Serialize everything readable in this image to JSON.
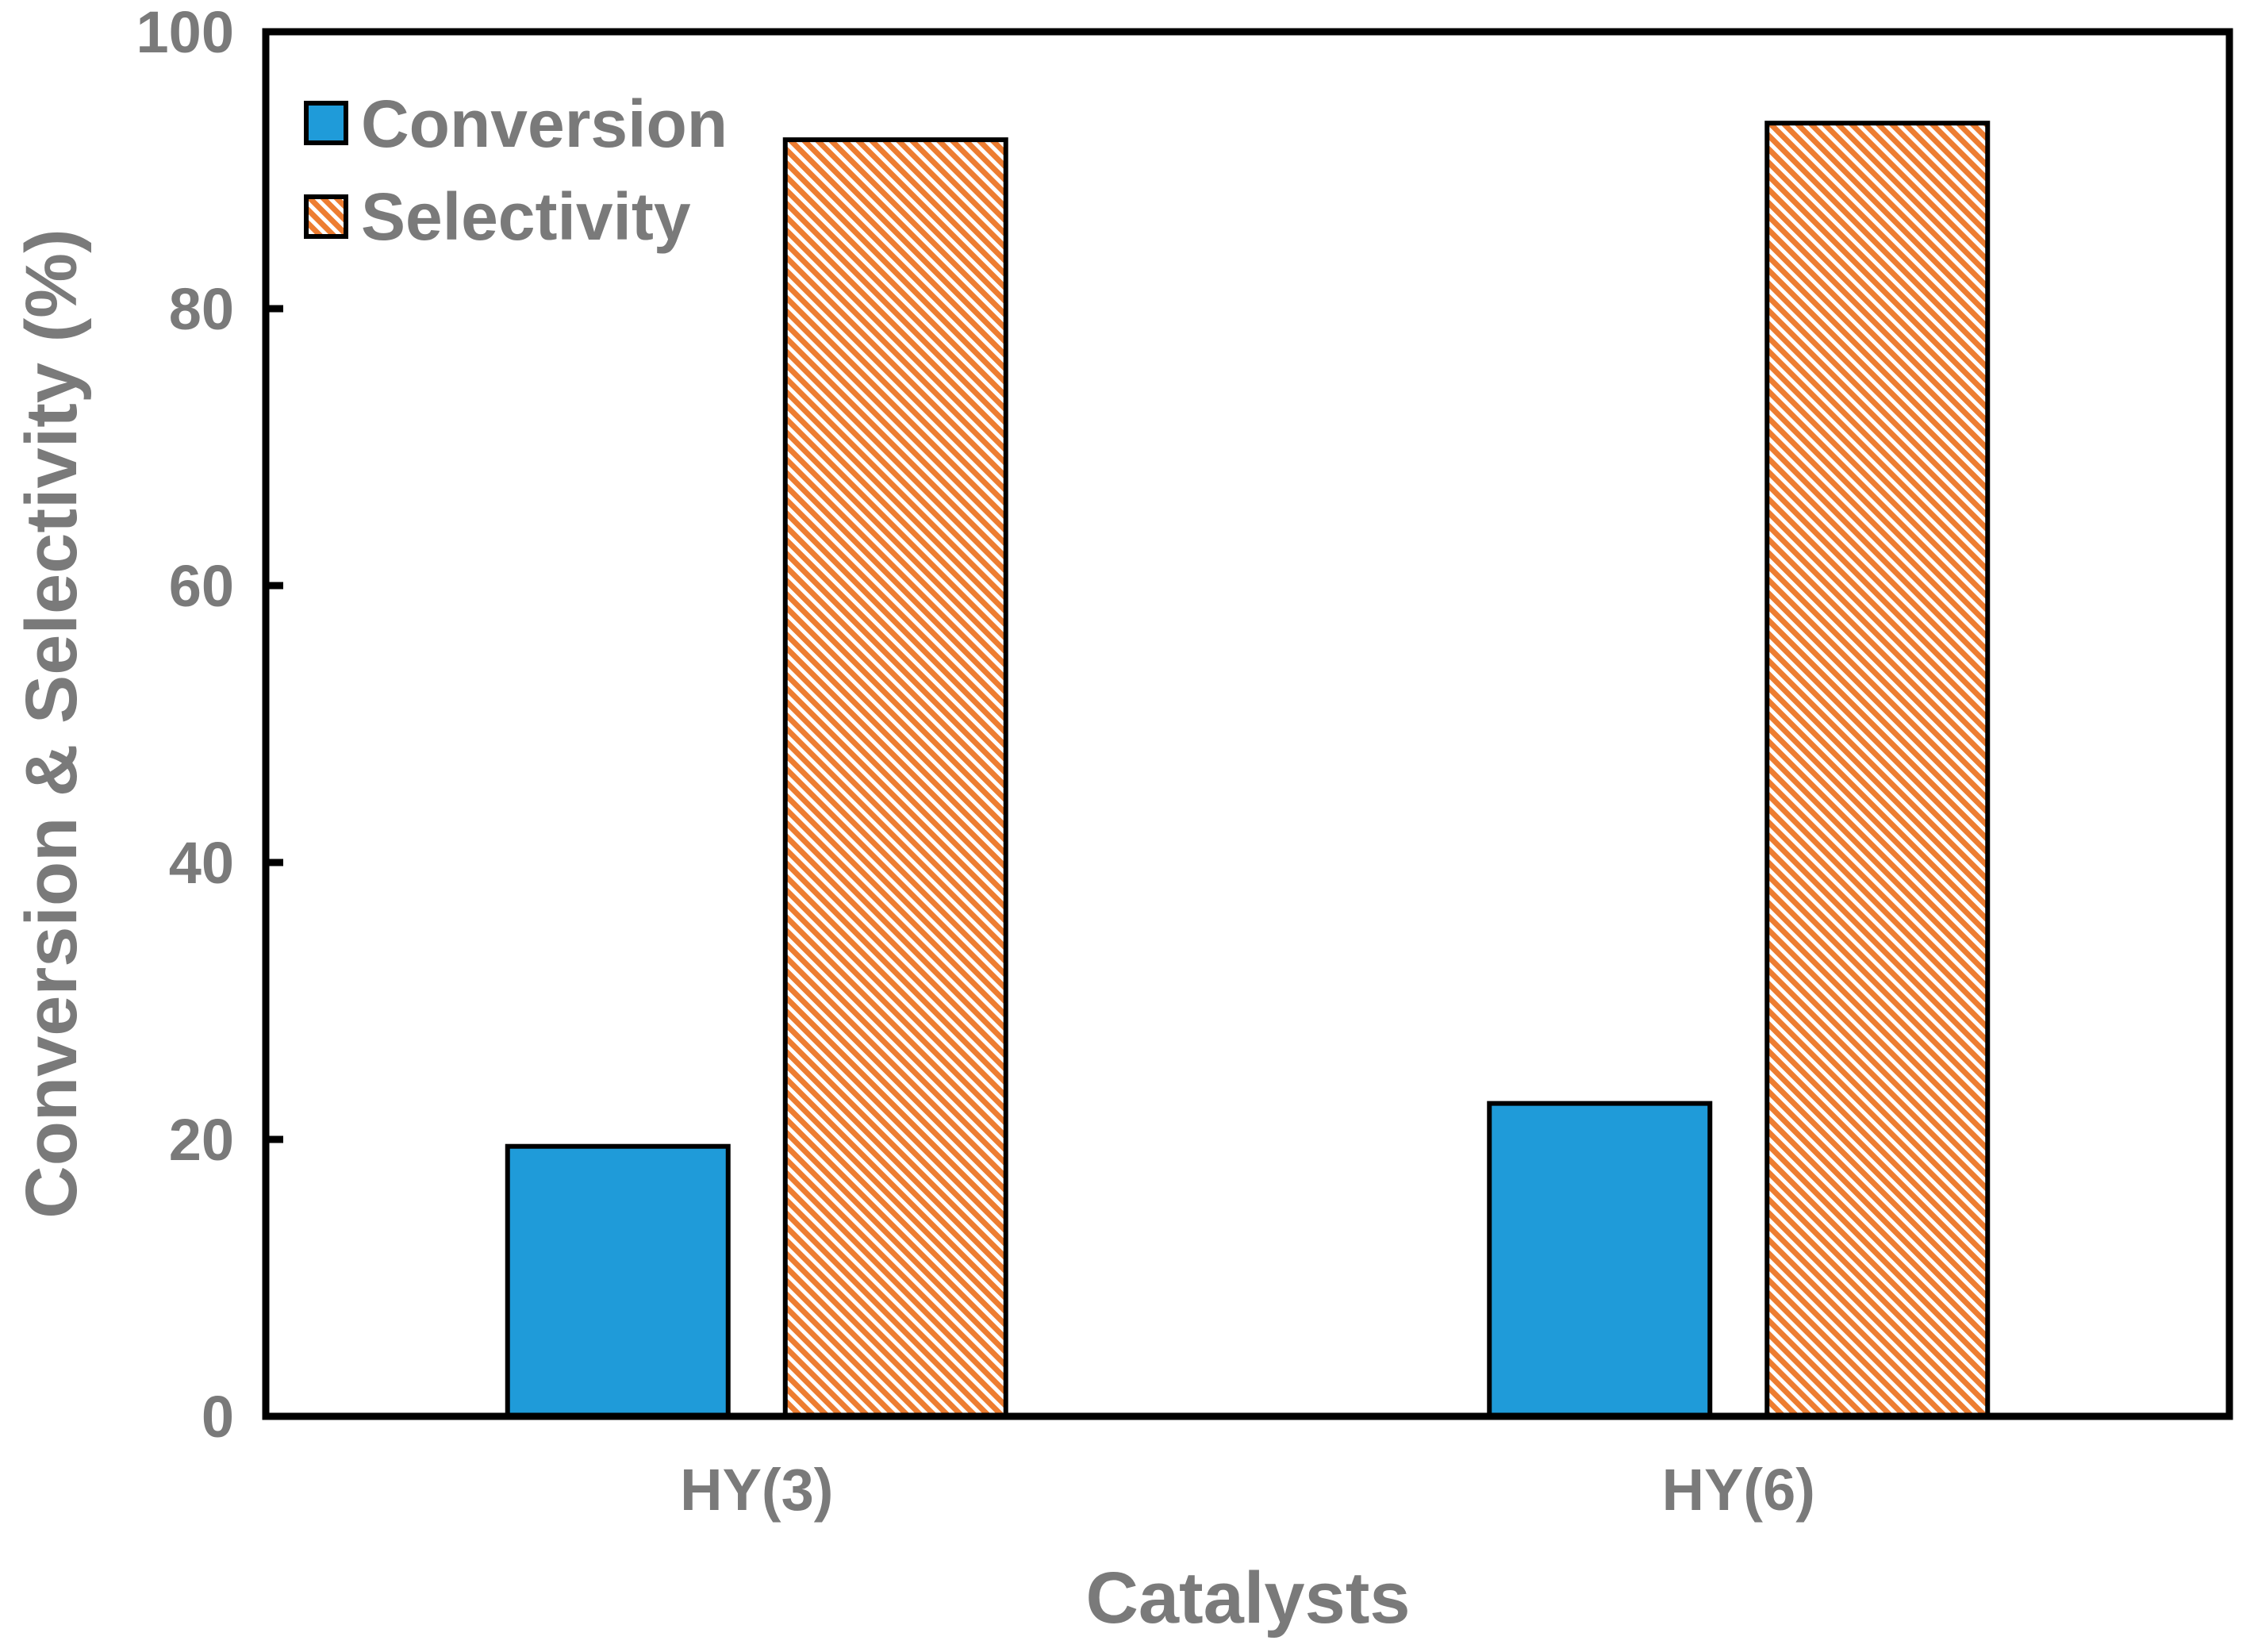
{
  "chart_data": {
    "type": "bar",
    "categories": [
      "HY(3)",
      "HY(6)"
    ],
    "series": [
      {
        "name": "Conversion",
        "values": [
          19.5,
          22.6
        ],
        "color": "#1f9bd9",
        "pattern": "solid"
      },
      {
        "name": "Selectivity",
        "values": [
          92.2,
          93.4
        ],
        "color": "#ed7d31",
        "pattern": "diagonal-hatch"
      }
    ],
    "title": "",
    "xlabel": "Catalysts",
    "ylabel": "Conversion & Selectivity (%)",
    "ylim": [
      0,
      100
    ],
    "yticks": [
      0,
      20,
      40,
      60,
      80,
      100
    ],
    "grid": false,
    "legend_position": "top-left"
  },
  "colors": {
    "text": "#7a7a7a",
    "axis": "#000000",
    "conversion": "#1f9bd9",
    "selectivity": "#ed7d31"
  }
}
